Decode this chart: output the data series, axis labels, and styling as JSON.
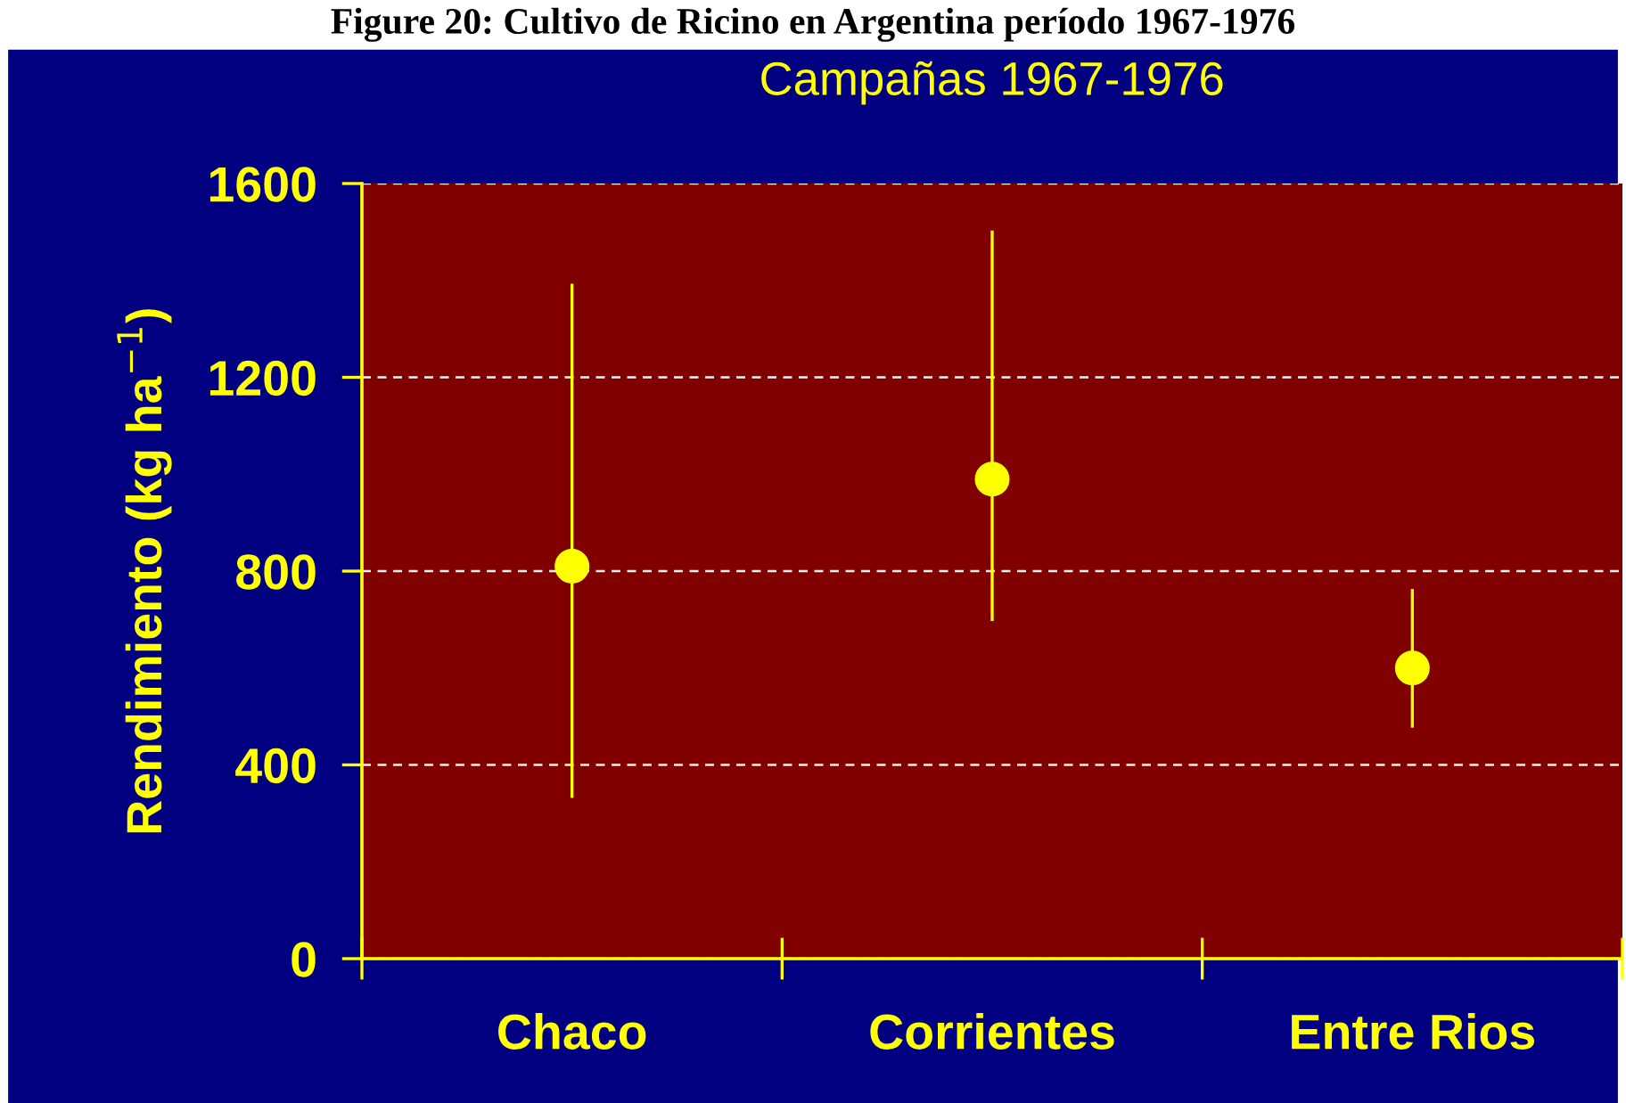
{
  "chart_data": {
    "type": "scatter",
    "title": "Figure 20: Cultivo de Ricino en Argentina período 1967-1976",
    "subtitle": "Campañas 1967-1976",
    "ylabel": "Rendimiento (kg ha$^{−1}$)",
    "categories": [
      "Chaco",
      "Corrientes",
      "Entre Rios"
    ],
    "series": [
      {
        "color": "#ffff00",
        "values": [
          810,
          990,
          600
        ],
        "errors": [
          [
            335,
            1390
          ],
          [
            700,
            1500
          ],
          [
            480,
            760
          ]
        ]
      }
    ],
    "ylim": [
      0,
      1600
    ],
    "yticks": [
      0,
      400,
      800,
      1200,
      1600
    ],
    "grid": "y",
    "marker": "circle"
  }
}
